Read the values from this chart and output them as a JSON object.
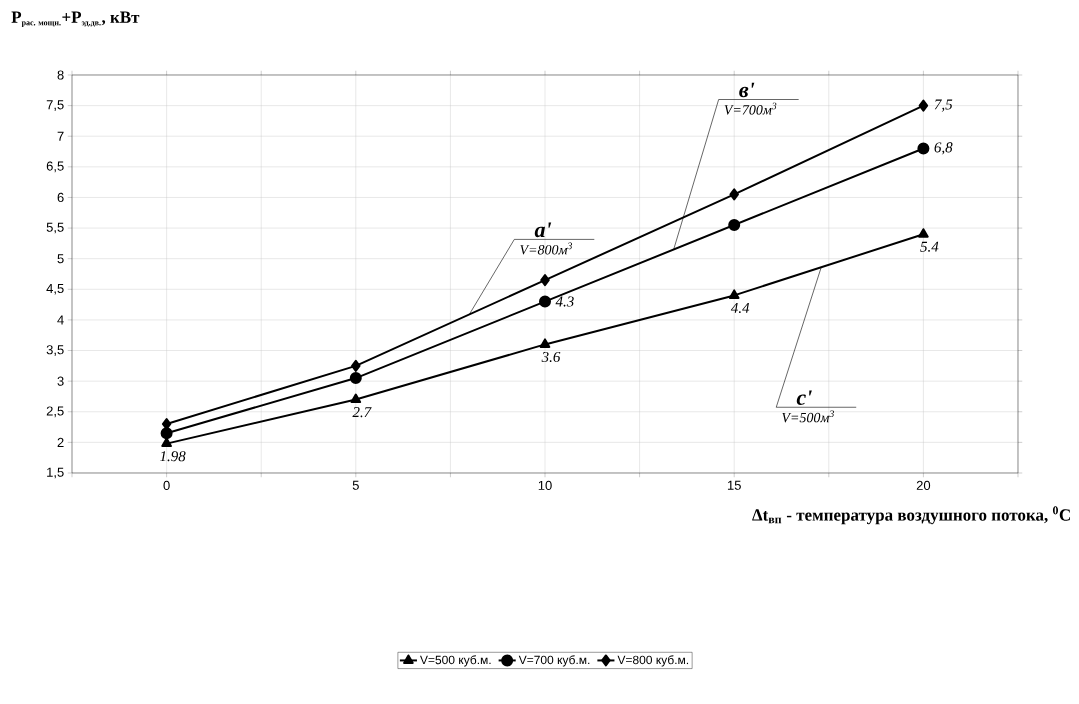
{
  "chart_data": {
    "type": "line",
    "xlabel": "Δt$_{вп}$ - температура воздушного потока, $^{0}$C",
    "ylabel": "\\mbox{P}_{\\mbox{\\footnotesize рас. мощн.}}\\mbox{+P}_{\\mbox{\\footnotesize эд.дв.}}\\mbox{, кВт}",
    "x": [
      0,
      5,
      10,
      15,
      20
    ],
    "xlim": [
      -2.5,
      22.5
    ],
    "xticks": [
      {
        "value": -2.5,
        "label": null
      },
      0,
      {
        "value": 2.5,
        "label": null
      },
      5,
      {
        "value": 7.5,
        "label": null
      },
      10,
      {
        "value": 12.5,
        "label": null
      },
      15,
      {
        "value": 17.5,
        "label": null
      },
      20,
      {
        "value": 22.5,
        "label": null
      }
    ],
    "ylim": [
      1.5,
      8
    ],
    "yticks": [
      {
        "value": 1.5,
        "label": "1,5"
      },
      2,
      {
        "value": 2.5,
        "label": "2,5"
      },
      3,
      {
        "value": 3.5,
        "label": "3,5"
      },
      4,
      {
        "value": 4.5,
        "label": "4,5"
      },
      5,
      {
        "value": 5.5,
        "label": "5,5"
      },
      6,
      {
        "value": 6.5,
        "label": "6,5"
      },
      7,
      {
        "value": 7.5,
        "label": "7,5"
      },
      8
    ],
    "grid": true,
    "legend": "bottom",
    "series": [
      {
        "name": "V=500 куб.м.",
        "color": "#000000",
        "marker": "triangle",
        "values": [
          1.98,
          2.7,
          3.6,
          4.4,
          5.4
        ],
        "value_labels": [
          "1.98",
          "2.7",
          "3.6",
          "4.4",
          "5.4"
        ]
      },
      {
        "name": "V=700 куб.м.",
        "color": "#000000",
        "marker": "circle",
        "values": [
          2.15,
          3.05,
          4.3,
          5.55,
          6.8
        ],
        "value_labels": [
          null,
          null,
          "4.3",
          null,
          "6,8"
        ]
      },
      {
        "name": "V=800 куб.м.",
        "color": "#000000",
        "marker": "diamond",
        "values": [
          2.3,
          3.25,
          4.65,
          6.05,
          7.5
        ],
        "value_labels": [
          null,
          null,
          null,
          null,
          "7,5"
        ]
      }
    ],
    "annotations": [
      {
        "text": "**a'**",
        "x": 8,
        "y": 4.09
      },
      {
        "text": "V=800м$^{3}$",
        "x": 8,
        "y": 4.09
      },
      {
        "text": "**в'**",
        "x": 13.4,
        "y": 5.15
      },
      {
        "text": "V=700м$^{3}$",
        "x": 13.4,
        "y": 5.15
      },
      {
        "text": "**c'**",
        "x": 17.3,
        "y": 4.86
      },
      {
        "text": "V=500м$^{3}$",
        "x": 17.3,
        "y": 4.86
      }
    ]
  }
}
